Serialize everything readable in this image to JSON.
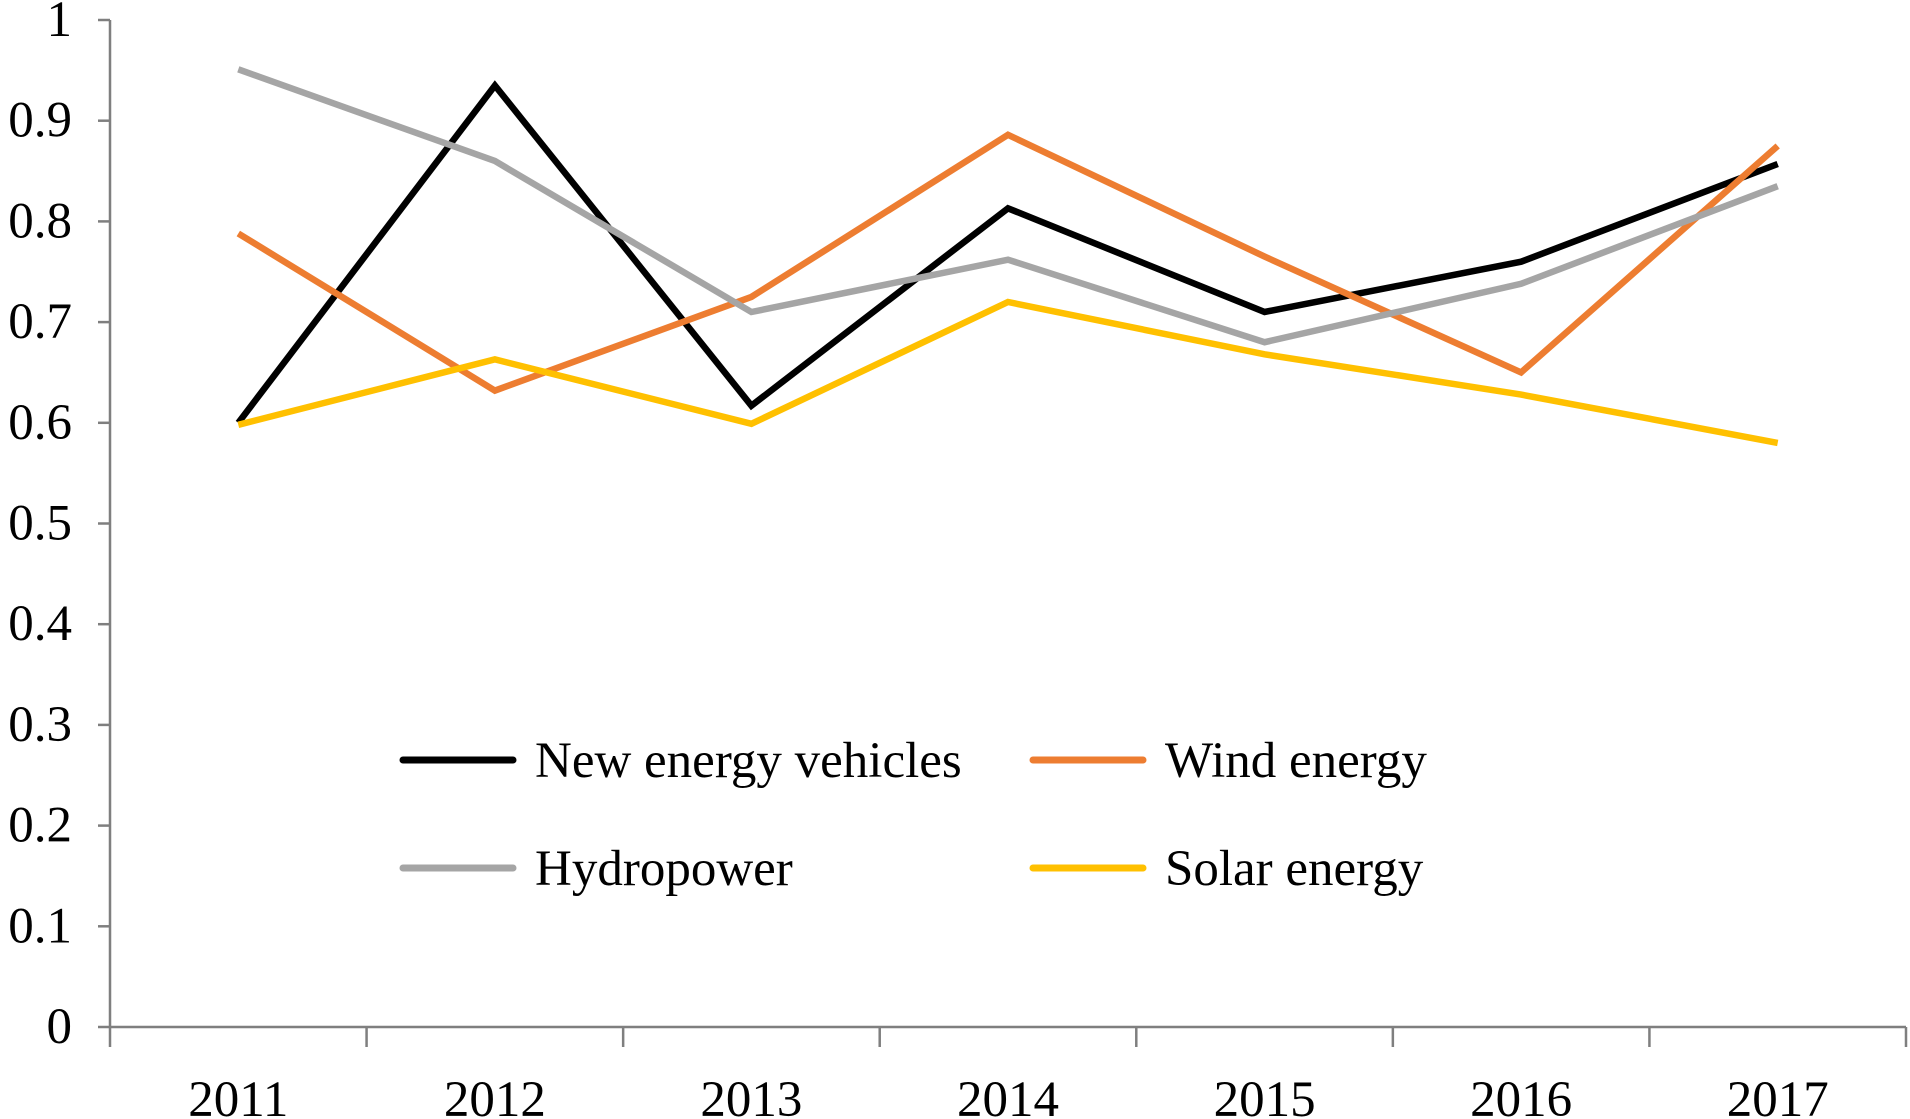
{
  "chart_data": {
    "type": "line",
    "title": "",
    "xlabel": "",
    "ylabel": "",
    "categories": [
      "2011",
      "2012",
      "2013",
      "2014",
      "2015",
      "2016",
      "2017"
    ],
    "ylim": [
      0,
      1
    ],
    "yticks": [
      0,
      0.1,
      0.2,
      0.3,
      0.4,
      0.5,
      0.6,
      0.7,
      0.8,
      0.9,
      1
    ],
    "ytick_labels": [
      "0",
      "0.1",
      "0.2",
      "0.3",
      "0.4",
      "0.5",
      "0.6",
      "0.7",
      "0.8",
      "0.9",
      "1"
    ],
    "grid": false,
    "legend_position": "center-bottom",
    "series": [
      {
        "name": "New energy vehicles",
        "color": "#000000",
        "values": [
          0.6,
          0.935,
          0.617,
          0.813,
          0.71,
          0.76,
          0.857
        ]
      },
      {
        "name": "Wind energy",
        "color": "#ED7D31",
        "values": [
          0.788,
          0.632,
          0.725,
          0.886,
          0.765,
          0.65,
          0.875
        ]
      },
      {
        "name": "Hydropower",
        "color": "#A5A5A5",
        "values": [
          0.951,
          0.86,
          0.71,
          0.762,
          0.68,
          0.738,
          0.835
        ]
      },
      {
        "name": "Solar energy",
        "color": "#FFC000",
        "values": [
          0.598,
          0.663,
          0.599,
          0.72,
          0.668,
          0.628,
          0.58
        ]
      }
    ]
  }
}
